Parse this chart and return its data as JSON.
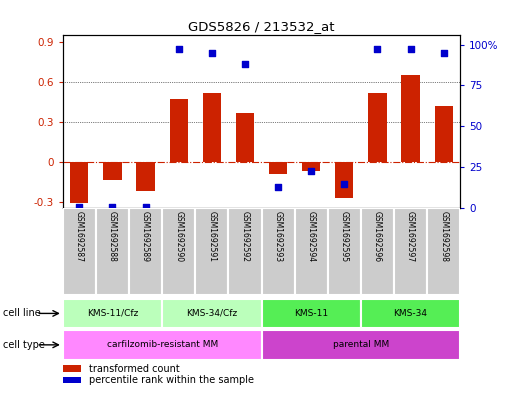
{
  "title": "GDS5826 / 213532_at",
  "samples": [
    "GSM1692587",
    "GSM1692588",
    "GSM1692589",
    "GSM1692590",
    "GSM1692591",
    "GSM1692592",
    "GSM1692593",
    "GSM1692594",
    "GSM1692595",
    "GSM1692596",
    "GSM1692597",
    "GSM1692598"
  ],
  "bar_values": [
    -0.31,
    -0.14,
    -0.22,
    0.47,
    0.52,
    0.37,
    -0.09,
    -0.07,
    -0.27,
    0.52,
    0.65,
    0.42
  ],
  "percentile_values": [
    0.82,
    0.84,
    0.83,
    97.0,
    95.0,
    88.0,
    13.0,
    23.0,
    15.0,
    97.0,
    97.0,
    95.0
  ],
  "bar_color": "#cc2200",
  "dot_color": "#0000cc",
  "ylim_left": [
    -0.35,
    0.95
  ],
  "ylim_right": [
    0,
    105.6
  ],
  "yticks_left": [
    -0.3,
    0.0,
    0.3,
    0.6,
    0.9
  ],
  "ytick_labels_left": [
    "-0.3",
    "0",
    "0.3",
    "0.6",
    "0.9"
  ],
  "yticks_right": [
    0,
    25,
    50,
    75,
    100
  ],
  "ytick_labels_right": [
    "0",
    "25",
    "50",
    "75",
    "100%"
  ],
  "dotted_lines": [
    0.3,
    0.6
  ],
  "cell_line_groups": [
    {
      "label": "KMS-11/Cfz",
      "start": 0,
      "end": 3,
      "color": "#bbffbb"
    },
    {
      "label": "KMS-34/Cfz",
      "start": 3,
      "end": 6,
      "color": "#bbffbb"
    },
    {
      "label": "KMS-11",
      "start": 6,
      "end": 9,
      "color": "#55ee55"
    },
    {
      "label": "KMS-34",
      "start": 9,
      "end": 12,
      "color": "#55ee55"
    }
  ],
  "cell_type_groups": [
    {
      "label": "carfilzomib-resistant MM",
      "start": 0,
      "end": 6,
      "color": "#ff88ff"
    },
    {
      "label": "parental MM",
      "start": 6,
      "end": 12,
      "color": "#cc44cc"
    }
  ],
  "cell_line_label": "cell line",
  "cell_type_label": "cell type",
  "legend_bar_label": "transformed count",
  "legend_dot_label": "percentile rank within the sample",
  "tick_label_color_left": "#cc2200",
  "tick_label_color_right": "#0000cc",
  "bar_width": 0.55,
  "sample_box_color": "#cccccc",
  "sample_box_edge": "#ffffff"
}
